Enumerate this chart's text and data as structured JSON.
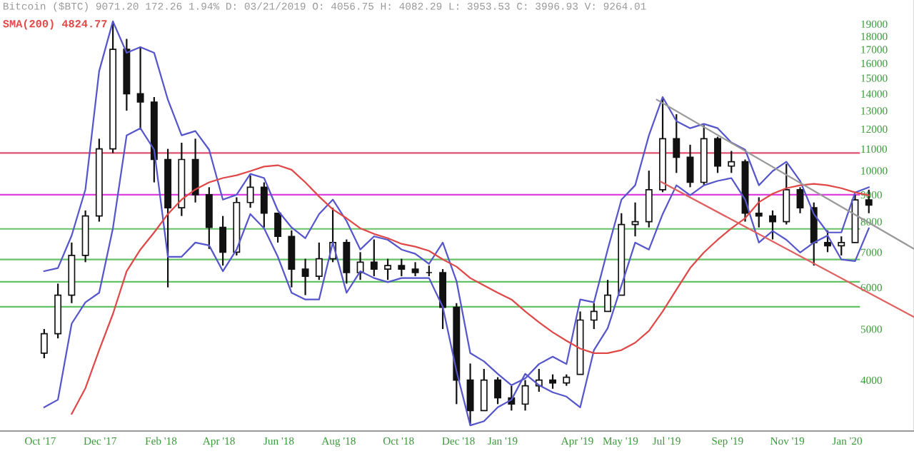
{
  "chart_data": {
    "type": "candlestick",
    "title": "Bitcoin ($BTC) 9071.20 172.26 1.94% D: 03/21/2019 O: 4056.75 H: 4082.29 L: 3953.53 C: 3996.93 V: 9264.01",
    "x": [
      "2017-10-05",
      "2017-10-19",
      "2017-11-02",
      "2017-11-16",
      "2017-11-30",
      "2017-12-14",
      "2017-12-28",
      "2018-01-11",
      "2018-01-25",
      "2018-02-08",
      "2018-02-22",
      "2018-03-08",
      "2018-03-22",
      "2018-04-05",
      "2018-04-19",
      "2018-05-03",
      "2018-05-17",
      "2018-05-31",
      "2018-06-14",
      "2018-06-28",
      "2018-07-12",
      "2018-07-26",
      "2018-08-09",
      "2018-08-23",
      "2018-09-06",
      "2018-09-20",
      "2018-10-04",
      "2018-10-18",
      "2018-11-01",
      "2018-11-15",
      "2018-11-29",
      "2018-12-13",
      "2018-12-27",
      "2019-01-10",
      "2019-01-24",
      "2019-02-07",
      "2019-02-21",
      "2019-03-07",
      "2019-03-21",
      "2019-04-04",
      "2019-04-18",
      "2019-05-02",
      "2019-05-16",
      "2019-05-30",
      "2019-06-13",
      "2019-06-27",
      "2019-07-11",
      "2019-07-25",
      "2019-08-08",
      "2019-08-22",
      "2019-09-05",
      "2019-09-19",
      "2019-10-03",
      "2019-10-17",
      "2019-10-31",
      "2019-11-14",
      "2019-11-28",
      "2019-12-12",
      "2019-12-26",
      "2020-01-09",
      "2020-01-23"
    ],
    "ohlc": [
      [
        4500,
        5000,
        4400,
        4900
      ],
      [
        4900,
        6100,
        4800,
        5800
      ],
      [
        5800,
        7300,
        5600,
        6900
      ],
      [
        6900,
        8400,
        6700,
        8200
      ],
      [
        8200,
        11500,
        8000,
        11000
      ],
      [
        11000,
        19200,
        10800,
        17000
      ],
      [
        17000,
        17800,
        13000,
        14000
      ],
      [
        14000,
        17200,
        12000,
        13500
      ],
      [
        13500,
        13800,
        9500,
        10500
      ],
      [
        10500,
        11000,
        6000,
        8500
      ],
      [
        8500,
        11300,
        8200,
        10500
      ],
      [
        10500,
        11500,
        8700,
        9000
      ],
      [
        9000,
        9300,
        7100,
        7800
      ],
      [
        7800,
        8200,
        6600,
        7000
      ],
      [
        7000,
        8900,
        6900,
        8700
      ],
      [
        8700,
        9800,
        8500,
        9300
      ],
      [
        9300,
        9500,
        7800,
        8300
      ],
      [
        8300,
        8300,
        7300,
        7500
      ],
      [
        7500,
        7700,
        6000,
        6500
      ],
      [
        6500,
        6800,
        5800,
        6300
      ],
      [
        6300,
        7300,
        6200,
        6800
      ],
      [
        6800,
        8500,
        6700,
        7300
      ],
      [
        7300,
        7400,
        6100,
        6400
      ],
      [
        6400,
        7000,
        6200,
        6700
      ],
      [
        6700,
        7400,
        6300,
        6500
      ],
      [
        6500,
        6800,
        6200,
        6600
      ],
      [
        6600,
        6800,
        6300,
        6500
      ],
      [
        6500,
        6700,
        6300,
        6400
      ],
      [
        6400,
        6600,
        6300,
        6400
      ],
      [
        6400,
        6500,
        5000,
        5500
      ],
      [
        5500,
        5600,
        3600,
        4000
      ],
      [
        4000,
        4300,
        3300,
        3500
      ],
      [
        3500,
        4200,
        3500,
        4000
      ],
      [
        4000,
        4050,
        3600,
        3700
      ],
      [
        3700,
        3900,
        3500,
        3600
      ],
      [
        3600,
        4000,
        3500,
        3900
      ],
      [
        3900,
        4200,
        3800,
        4000
      ],
      [
        4000,
        4100,
        3850,
        3950
      ],
      [
        3950,
        4100,
        3900,
        4050
      ],
      [
        4100,
        5400,
        4100,
        5200
      ],
      [
        5200,
        5600,
        5000,
        5400
      ],
      [
        5400,
        6200,
        5400,
        5800
      ],
      [
        5800,
        8300,
        5800,
        7900
      ],
      [
        7900,
        8700,
        7500,
        8000
      ],
      [
        8000,
        10000,
        7800,
        9200
      ],
      [
        9200,
        13700,
        9100,
        11500
      ],
      [
        11500,
        12800,
        9900,
        10600
      ],
      [
        10600,
        11200,
        9300,
        9500
      ],
      [
        9500,
        12200,
        9400,
        11500
      ],
      [
        11500,
        11600,
        9900,
        10200
      ],
      [
        10200,
        10900,
        9900,
        10400
      ],
      [
        10400,
        10500,
        8000,
        8300
      ],
      [
        8300,
        8900,
        7800,
        8200
      ],
      [
        8200,
        8400,
        7400,
        8000
      ],
      [
        8000,
        10300,
        7900,
        9200
      ],
      [
        9200,
        9300,
        8300,
        8500
      ],
      [
        8500,
        8700,
        6600,
        7300
      ],
      [
        7300,
        7700,
        7000,
        7200
      ],
      [
        7200,
        7500,
        6900,
        7300
      ],
      [
        7300,
        9000,
        7300,
        8800
      ],
      [
        8800,
        9200,
        8300,
        8600
      ]
    ],
    "color": "#111111",
    "series": [
      {
        "type": "line",
        "color": "#5555cc",
        "x": [
          "2017-10-05",
          "2017-10-19",
          "2017-11-02",
          "2017-11-16",
          "2017-11-30",
          "2017-12-14",
          "2017-12-28",
          "2018-01-11",
          "2018-01-25",
          "2018-02-08",
          "2018-02-22",
          "2018-03-08",
          "2018-03-22",
          "2018-04-05",
          "2018-04-19",
          "2018-05-03",
          "2018-05-17",
          "2018-05-31",
          "2018-06-14",
          "2018-06-28",
          "2018-07-12",
          "2018-07-26",
          "2018-08-09",
          "2018-08-23",
          "2018-09-06",
          "2018-09-20",
          "2018-10-04",
          "2018-10-18",
          "2018-11-01",
          "2018-11-15",
          "2018-11-29",
          "2018-12-13",
          "2018-12-27",
          "2019-01-10",
          "2019-01-24",
          "2019-02-07",
          "2019-02-21",
          "2019-03-07",
          "2019-03-21",
          "2019-04-04",
          "2019-04-18",
          "2019-05-02",
          "2019-05-16",
          "2019-05-30",
          "2019-06-13",
          "2019-06-27",
          "2019-07-11",
          "2019-07-25",
          "2019-08-08",
          "2019-08-22",
          "2019-09-05",
          "2019-09-19",
          "2019-10-03",
          "2019-10-17",
          "2019-10-31",
          "2019-11-14",
          "2019-11-28",
          "2019-12-12",
          "2019-12-26",
          "2020-01-09",
          "2020-01-23"
        ],
        "values": [
          6440,
          6530,
          7530,
          9210,
          15460,
          19220,
          16750,
          17170,
          16750,
          13640,
          11670,
          11890,
          10960,
          8810,
          9000,
          9860,
          9680,
          8400,
          7800,
          7440,
          8270,
          8810,
          8020,
          7080,
          7500,
          7390,
          7080,
          6950,
          6650,
          7300,
          6170,
          4500,
          4340,
          4110,
          3910,
          4030,
          4290,
          4430,
          4290,
          5690,
          5620,
          7080,
          8810,
          9380,
          11670,
          13800,
          12420,
          12040,
          12270,
          12040,
          11310,
          10960,
          9380,
          9980,
          10400,
          9560,
          8270,
          7630,
          7630,
          9090,
          9300
        ]
      },
      {
        "type": "line",
        "color": "#5555cc",
        "x": [
          "2017-10-05",
          "2017-10-19",
          "2017-11-02",
          "2017-11-16",
          "2017-11-30",
          "2017-12-14",
          "2017-12-28",
          "2018-01-11",
          "2018-01-25",
          "2018-02-08",
          "2018-02-22",
          "2018-03-08",
          "2018-03-22",
          "2018-04-05",
          "2018-04-19",
          "2018-05-03",
          "2018-05-17",
          "2018-05-31",
          "2018-06-14",
          "2018-06-28",
          "2018-07-12",
          "2018-07-26",
          "2018-08-09",
          "2018-08-23",
          "2018-09-06",
          "2018-09-20",
          "2018-10-04",
          "2018-10-18",
          "2018-11-01",
          "2018-11-15",
          "2018-11-29",
          "2018-12-13",
          "2018-12-27",
          "2019-01-10",
          "2019-01-24",
          "2019-02-07",
          "2019-02-21",
          "2019-03-07",
          "2019-03-21",
          "2019-04-04",
          "2019-04-18",
          "2019-05-02",
          "2019-05-16",
          "2019-05-30",
          "2019-06-13",
          "2019-06-27",
          "2019-07-11",
          "2019-07-25",
          "2019-08-08",
          "2019-08-22",
          "2019-09-05",
          "2019-09-19",
          "2019-10-03",
          "2019-10-17",
          "2019-10-31",
          "2019-11-14",
          "2019-11-28",
          "2019-12-12",
          "2019-12-26",
          "2020-01-09",
          "2020-01-23"
        ],
        "values": [
          3550,
          3670,
          5120,
          5620,
          5860,
          7770,
          11670,
          12040,
          10960,
          6860,
          6860,
          7300,
          7210,
          6440,
          7080,
          8270,
          7770,
          6860,
          5860,
          5690,
          5690,
          7300,
          5860,
          6440,
          6250,
          6140,
          6250,
          6250,
          6250,
          5510,
          4160,
          3280,
          3340,
          3550,
          3670,
          4110,
          3910,
          3790,
          3720,
          3550,
          4560,
          5020,
          6050,
          7300,
          7080,
          8270,
          9380,
          8980,
          9380,
          9560,
          9680,
          8810,
          7300,
          7680,
          7390,
          6990,
          7300,
          7530,
          6780,
          6730,
          7770
        ]
      },
      {
        "type": "line",
        "name": "SMA(200) 4824.77",
        "color": "#e04848",
        "x": [
          "2017-11-02",
          "2017-11-16",
          "2017-11-30",
          "2017-12-14",
          "2017-12-28",
          "2018-01-11",
          "2018-01-25",
          "2018-02-08",
          "2018-02-22",
          "2018-03-08",
          "2018-03-22",
          "2018-04-05",
          "2018-04-19",
          "2018-05-03",
          "2018-05-17",
          "2018-05-31",
          "2018-06-14",
          "2018-06-28",
          "2018-07-12",
          "2018-07-26",
          "2018-08-09",
          "2018-08-23",
          "2018-09-06",
          "2018-09-20",
          "2018-10-04",
          "2018-10-18",
          "2018-11-01",
          "2018-11-15",
          "2018-11-29",
          "2018-12-13",
          "2018-12-27",
          "2019-01-10",
          "2019-01-24",
          "2019-02-07",
          "2019-02-21",
          "2019-03-07",
          "2019-03-21",
          "2019-04-04",
          "2019-04-18",
          "2019-05-02",
          "2019-05-16",
          "2019-05-30",
          "2019-06-13",
          "2019-06-27",
          "2019-07-11",
          "2019-07-25",
          "2019-08-08",
          "2019-08-22",
          "2019-09-05",
          "2019-09-19",
          "2019-10-03",
          "2019-10-17",
          "2019-10-31",
          "2019-11-14",
          "2019-11-28",
          "2019-12-12",
          "2019-12-26",
          "2020-01-09",
          "2020-01-23"
        ],
        "values": [
          3450,
          3860,
          4560,
          5340,
          6440,
          7080,
          7630,
          8270,
          8810,
          9210,
          9500,
          9680,
          9800,
          9980,
          10180,
          10240,
          10040,
          9500,
          8930,
          8440,
          8120,
          7770,
          7580,
          7440,
          7260,
          7170,
          7040,
          6780,
          6570,
          6250,
          6050,
          5860,
          5690,
          5400,
          5150,
          4930,
          4750,
          4590,
          4500,
          4500,
          4560,
          4710,
          4960,
          5400,
          5940,
          6530,
          6990,
          7390,
          7770,
          8120,
          8710,
          9040,
          9260,
          9380,
          9440,
          9380,
          9260,
          9090,
          8980
        ]
      },
      {
        "type": "line",
        "color": "#999999",
        "x": [
          "2019-06-21",
          "2020-03-09"
        ],
        "values": [
          13640,
          7100
        ]
      },
      {
        "type": "line",
        "color": "#e06060",
        "x": [
          "2019-06-25",
          "2020-03-09"
        ],
        "values": [
          9530,
          5270
        ]
      }
    ],
    "ref_lines": [
      {
        "axis": "y",
        "value": 7750,
        "color": "#66c266"
      },
      {
        "axis": "y",
        "value": 6780,
        "color": "#66c266"
      },
      {
        "axis": "y",
        "value": 6150,
        "color": "#66c266"
      },
      {
        "axis": "y",
        "value": 5510,
        "color": "#66c266"
      },
      {
        "axis": "y",
        "value": 10800,
        "color": "#e05070"
      },
      {
        "axis": "y",
        "value": 9000,
        "color": "#e040e0"
      }
    ],
    "log": true,
    "xlim": [
      "2017-08-21",
      "2020-03-09"
    ],
    "xticks": [
      {
        "value": "2017-10-01",
        "label": "Oct '17"
      },
      {
        "value": "2017-12-01",
        "label": "Dec '17"
      },
      {
        "value": "2018-02-01",
        "label": "Feb '18"
      },
      {
        "value": "2018-04-01",
        "label": "Apr '18"
      },
      {
        "value": "2018-06-01",
        "label": "Jun '18"
      },
      {
        "value": "2018-08-01",
        "label": "Aug '18"
      },
      {
        "value": "2018-10-01",
        "label": "Oct '18"
      },
      {
        "value": "2018-12-01",
        "label": "Dec '18"
      },
      {
        "value": "2019-01-15",
        "label": "Jan '19"
      },
      {
        "value": "2019-04-01",
        "label": "Apr '19"
      },
      {
        "value": "2019-05-15",
        "label": "May '19"
      },
      {
        "value": "2019-07-01",
        "label": "Jul '19"
      },
      {
        "value": "2019-09-01",
        "label": "Sep '19"
      },
      {
        "value": "2019-11-01",
        "label": "Nov '19"
      },
      {
        "value": "2020-01-01",
        "label": "Jan '20"
      }
    ],
    "ylim": [
      3200,
      21100
    ],
    "yticks": [
      4000,
      5000,
      6000,
      7000,
      8000,
      9000,
      10000,
      11000,
      12000,
      13000,
      14000,
      15000,
      16000,
      17000,
      18000,
      19000
    ],
    "grid": false,
    "legend": false
  }
}
